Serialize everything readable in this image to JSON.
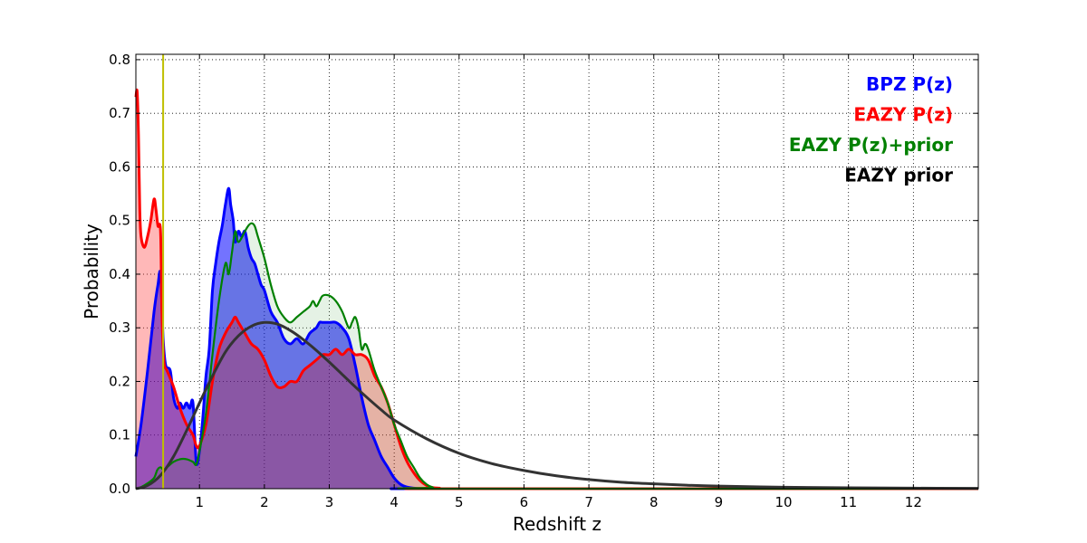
{
  "chart_data": {
    "type": "area",
    "xlabel": "Redshift z",
    "ylabel": "Probability",
    "xlim": [
      0.02,
      13.0
    ],
    "ylim": [
      0.0,
      0.81
    ],
    "grid": true,
    "legend_position": "top-right",
    "x_ticks": [
      1,
      2,
      3,
      4,
      5,
      6,
      7,
      8,
      9,
      10,
      11,
      12
    ],
    "x_tick_labels": [
      "1",
      "2",
      "3",
      "4",
      "5",
      "6",
      "7",
      "8",
      "9",
      "10",
      "11",
      "12"
    ],
    "y_ticks": [
      0.0,
      0.1,
      0.2,
      0.3,
      0.4,
      0.5,
      0.6,
      0.7,
      0.8
    ],
    "y_tick_labels": [
      "0.0",
      "0.1",
      "0.2",
      "0.3",
      "0.4",
      "0.5",
      "0.6",
      "0.7",
      "0.8"
    ],
    "vertical_line": {
      "x": 0.44,
      "color": "#bfbf00"
    },
    "series": [
      {
        "name": "BPZ P(z)",
        "color": "#0000ff",
        "fill": "#0000ff",
        "fill_opacity": 0.55,
        "line_width": 3,
        "x": [
          0.02,
          0.1,
          0.2,
          0.3,
          0.36,
          0.4,
          0.44,
          0.48,
          0.55,
          0.6,
          0.66,
          0.7,
          0.75,
          0.8,
          0.85,
          0.9,
          0.95,
          1.0,
          1.05,
          1.1,
          1.15,
          1.2,
          1.25,
          1.3,
          1.35,
          1.4,
          1.45,
          1.48,
          1.52,
          1.55,
          1.6,
          1.65,
          1.7,
          1.75,
          1.8,
          1.85,
          1.9,
          1.95,
          2.0,
          2.1,
          2.2,
          2.3,
          2.4,
          2.5,
          2.6,
          2.7,
          2.8,
          2.85,
          2.9,
          3.0,
          3.1,
          3.2,
          3.3,
          3.4,
          3.5,
          3.6,
          3.7,
          3.8,
          3.9,
          4.0,
          4.1,
          4.2,
          4.3,
          4.4,
          4.5,
          4.6,
          13.0
        ],
        "values": [
          0.06,
          0.12,
          0.22,
          0.33,
          0.38,
          0.4,
          0.28,
          0.23,
          0.22,
          0.17,
          0.15,
          0.16,
          0.15,
          0.16,
          0.15,
          0.16,
          0.05,
          0.07,
          0.13,
          0.21,
          0.26,
          0.37,
          0.42,
          0.46,
          0.49,
          0.53,
          0.56,
          0.53,
          0.5,
          0.46,
          0.48,
          0.47,
          0.48,
          0.45,
          0.43,
          0.42,
          0.4,
          0.38,
          0.37,
          0.33,
          0.31,
          0.28,
          0.27,
          0.28,
          0.27,
          0.29,
          0.3,
          0.31,
          0.31,
          0.31,
          0.31,
          0.3,
          0.28,
          0.23,
          0.17,
          0.12,
          0.09,
          0.06,
          0.04,
          0.02,
          0.008,
          0.003,
          0.001,
          0.0,
          0.0,
          0.0,
          0.0
        ]
      },
      {
        "name": "EAZY P(z)",
        "color": "#ff0000",
        "fill": "#ff0000",
        "fill_opacity": 0.28,
        "line_width": 3,
        "x": [
          0.02,
          0.04,
          0.06,
          0.08,
          0.1,
          0.15,
          0.2,
          0.25,
          0.3,
          0.33,
          0.36,
          0.4,
          0.42,
          0.44,
          0.46,
          0.5,
          0.6,
          0.7,
          0.8,
          0.9,
          0.95,
          1.0,
          1.1,
          1.2,
          1.3,
          1.4,
          1.5,
          1.55,
          1.6,
          1.7,
          1.8,
          1.9,
          2.0,
          2.1,
          2.2,
          2.3,
          2.4,
          2.5,
          2.6,
          2.7,
          2.8,
          2.9,
          3.0,
          3.1,
          3.2,
          3.3,
          3.4,
          3.5,
          3.6,
          3.7,
          3.8,
          3.9,
          4.0,
          4.1,
          4.2,
          4.3,
          4.4,
          4.5,
          4.6,
          4.7,
          4.8,
          13.0
        ],
        "values": [
          0.73,
          0.74,
          0.66,
          0.52,
          0.47,
          0.45,
          0.47,
          0.5,
          0.54,
          0.52,
          0.49,
          0.48,
          0.33,
          0.26,
          0.23,
          0.22,
          0.19,
          0.15,
          0.12,
          0.1,
          0.08,
          0.08,
          0.12,
          0.2,
          0.26,
          0.29,
          0.31,
          0.32,
          0.31,
          0.29,
          0.27,
          0.26,
          0.24,
          0.21,
          0.19,
          0.19,
          0.2,
          0.2,
          0.22,
          0.23,
          0.24,
          0.25,
          0.25,
          0.26,
          0.25,
          0.26,
          0.25,
          0.25,
          0.24,
          0.21,
          0.19,
          0.16,
          0.12,
          0.08,
          0.05,
          0.03,
          0.015,
          0.006,
          0.002,
          0.001,
          0.0,
          0.0
        ]
      },
      {
        "name": "EAZY P(z)+prior",
        "color": "#008000",
        "fill": "#008000",
        "fill_opacity": 0.1,
        "line_width": 2.2,
        "x": [
          0.02,
          0.1,
          0.2,
          0.3,
          0.35,
          0.4,
          0.45,
          0.5,
          0.6,
          0.7,
          0.8,
          0.9,
          0.95,
          1.0,
          1.1,
          1.2,
          1.3,
          1.4,
          1.45,
          1.5,
          1.55,
          1.6,
          1.7,
          1.75,
          1.8,
          1.85,
          1.9,
          2.0,
          2.1,
          2.2,
          2.3,
          2.4,
          2.5,
          2.6,
          2.7,
          2.75,
          2.8,
          2.85,
          2.9,
          3.0,
          3.1,
          3.2,
          3.3,
          3.35,
          3.4,
          3.45,
          3.5,
          3.55,
          3.6,
          3.7,
          3.8,
          3.9,
          4.0,
          4.1,
          4.2,
          4.3,
          4.4,
          4.5,
          4.6,
          4.7,
          13.0
        ],
        "values": [
          0.0,
          0.003,
          0.01,
          0.02,
          0.035,
          0.04,
          0.035,
          0.04,
          0.05,
          0.055,
          0.055,
          0.05,
          0.045,
          0.07,
          0.14,
          0.25,
          0.35,
          0.42,
          0.4,
          0.44,
          0.48,
          0.46,
          0.48,
          0.49,
          0.495,
          0.49,
          0.47,
          0.43,
          0.38,
          0.34,
          0.32,
          0.31,
          0.32,
          0.33,
          0.34,
          0.35,
          0.34,
          0.35,
          0.36,
          0.36,
          0.35,
          0.33,
          0.3,
          0.31,
          0.32,
          0.3,
          0.26,
          0.27,
          0.26,
          0.22,
          0.19,
          0.16,
          0.12,
          0.09,
          0.06,
          0.04,
          0.02,
          0.008,
          0.002,
          0.0,
          0.0
        ]
      },
      {
        "name": "EAZY prior",
        "color": "#333333",
        "fill": "none",
        "fill_opacity": 0,
        "line_width": 3,
        "x": [
          0.02,
          0.2,
          0.4,
          0.6,
          0.8,
          1.0,
          1.2,
          1.4,
          1.6,
          1.8,
          2.0,
          2.2,
          2.4,
          2.6,
          2.8,
          3.0,
          3.2,
          3.4,
          3.6,
          3.8,
          4.0,
          4.5,
          5.0,
          5.5,
          6.0,
          6.5,
          7.0,
          7.5,
          8.0,
          8.5,
          9.0,
          10.0,
          11.0,
          12.0,
          13.0
        ],
        "values": [
          0.0,
          0.006,
          0.025,
          0.06,
          0.108,
          0.16,
          0.21,
          0.255,
          0.285,
          0.303,
          0.31,
          0.307,
          0.295,
          0.278,
          0.258,
          0.236,
          0.213,
          0.19,
          0.168,
          0.147,
          0.128,
          0.093,
          0.066,
          0.047,
          0.034,
          0.024,
          0.017,
          0.012,
          0.009,
          0.0065,
          0.0048,
          0.0027,
          0.0016,
          0.001,
          0.0006
        ]
      }
    ]
  }
}
